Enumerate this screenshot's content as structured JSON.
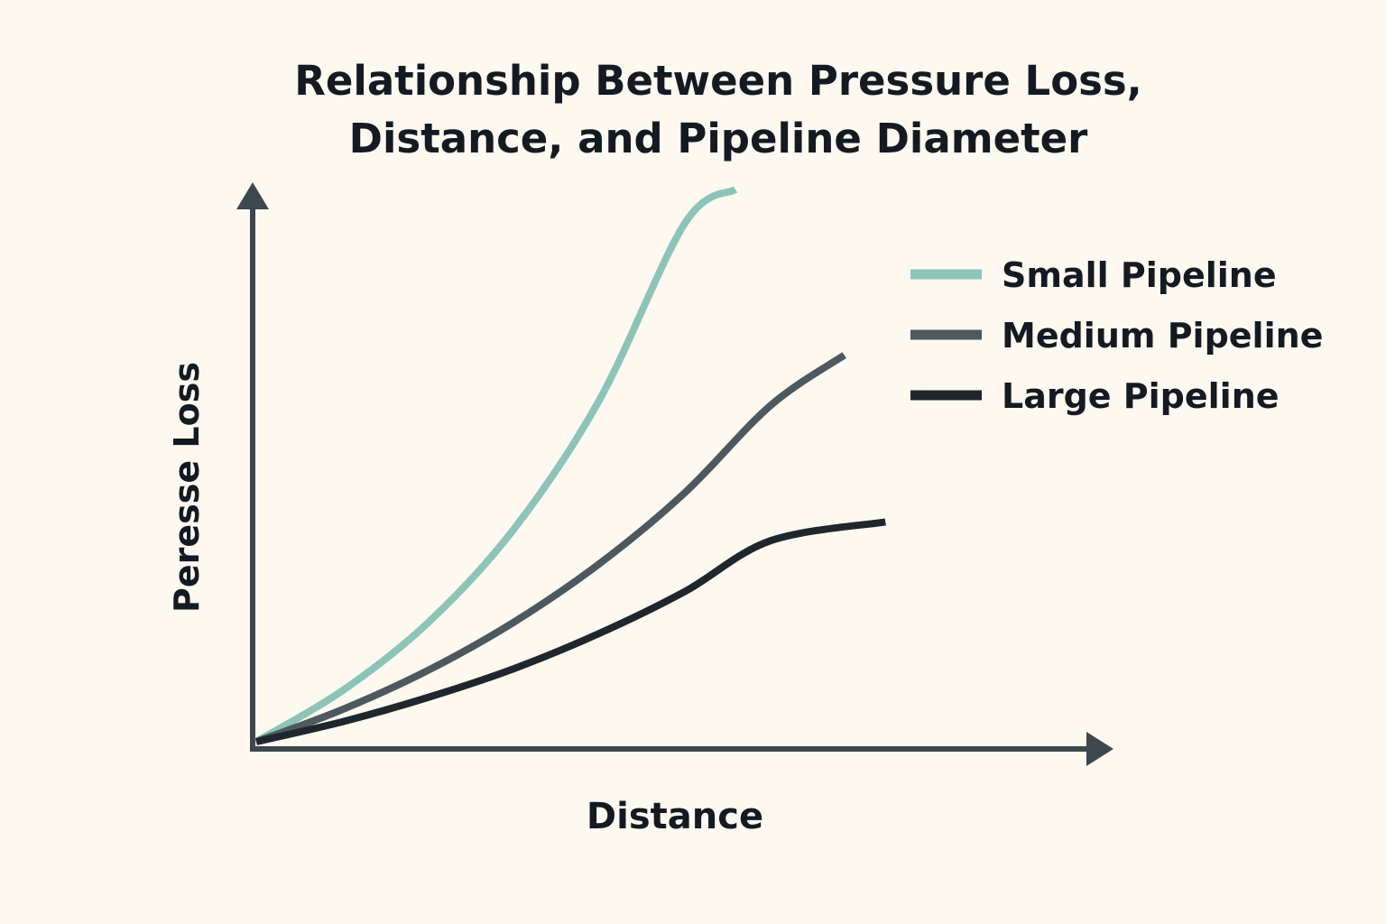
{
  "chart_data": {
    "type": "line",
    "title": [
      "Relationship Between Pressure Loss,",
      "Distance, and Pipeline Diameter"
    ],
    "xlabel": "Distance",
    "ylabel": "Peresse Loss",
    "xlim": [
      0,
      100
    ],
    "ylim": [
      0,
      100
    ],
    "grid": false,
    "legend_position": "top-right",
    "series": [
      {
        "name": "Small Pipeline",
        "color": "#8dc4b8",
        "x": [
          0,
          10,
          20,
          30,
          40,
          50,
          55.9
        ],
        "y": [
          0,
          9.2,
          21.5,
          38.4,
          61.8,
          93.9,
          100
        ]
      },
      {
        "name": "Medium Pipeline",
        "color": "#4e585f",
        "x": [
          0,
          10,
          20,
          30,
          40,
          50,
          60,
          68.6
        ],
        "y": [
          0,
          5.8,
          12.9,
          21.6,
          32.2,
          45.1,
          60.9,
          70
        ]
      },
      {
        "name": "Large Pipeline",
        "color": "#1f272d",
        "x": [
          0,
          10,
          20,
          30,
          40,
          50,
          60,
          73.4
        ],
        "y": [
          0,
          3.6,
          8.0,
          13.2,
          19.6,
          27.2,
          36.4,
          39.8
        ]
      }
    ]
  }
}
